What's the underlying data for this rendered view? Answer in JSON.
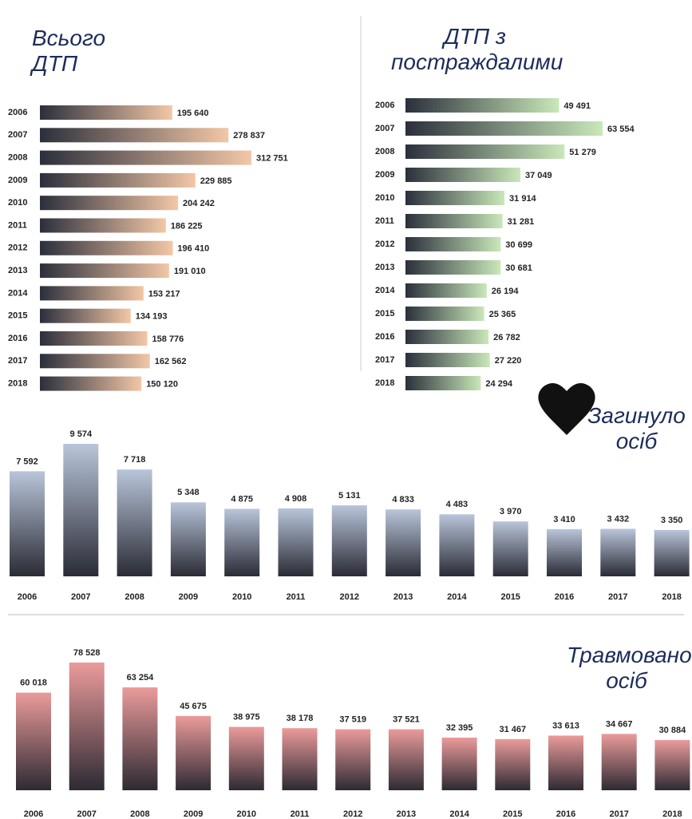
{
  "chart_data": [
    {
      "type": "hbar",
      "title": "Всього ДТП",
      "categories": [
        "2006",
        "2007",
        "2008",
        "2009",
        "2010",
        "2011",
        "2012",
        "2013",
        "2014",
        "2015",
        "2016",
        "2017",
        "2018"
      ],
      "values": [
        195640,
        278837,
        312751,
        229885,
        204242,
        186225,
        196410,
        191010,
        153217,
        134193,
        158776,
        162562,
        150120
      ],
      "value_labels": [
        "195 640",
        "278 837",
        "312 751",
        "229 885",
        "204 242",
        "186 225",
        "196 410",
        "191 010",
        "153 217",
        "134 193",
        "158 776",
        "162 562",
        "150 120"
      ],
      "gradient": [
        "#2b2f3c",
        "#f3c7a6"
      ]
    },
    {
      "type": "hbar",
      "title": "ДТП з постраждалими",
      "categories": [
        "2006",
        "2007",
        "2008",
        "2009",
        "2010",
        "2011",
        "2012",
        "2013",
        "2014",
        "2015",
        "2016",
        "2017",
        "2018"
      ],
      "values": [
        49491,
        63554,
        51279,
        37049,
        31914,
        31281,
        30699,
        30681,
        26194,
        25365,
        26782,
        27220,
        24294
      ],
      "value_labels": [
        "49 491",
        "63 554",
        "51 279",
        "37 049",
        "31 914",
        "31 281",
        "30 699",
        "30 681",
        "26 194",
        "25 365",
        "26 782",
        "27 220",
        "24 294"
      ],
      "gradient": [
        "#2b2f3c",
        "#c9e8b9"
      ]
    },
    {
      "type": "bar",
      "title": "Загинуло осіб",
      "categories": [
        "2006",
        "2007",
        "2008",
        "2009",
        "2010",
        "2011",
        "2012",
        "2013",
        "2014",
        "2015",
        "2016",
        "2017",
        "2018"
      ],
      "values": [
        7592,
        9574,
        7718,
        5348,
        4875,
        4908,
        5131,
        4833,
        4483,
        3970,
        3410,
        3432,
        3350
      ],
      "value_labels": [
        "7 592",
        "9 574",
        "7 718",
        "5 348",
        "4 875",
        "4 908",
        "5 131",
        "4 833",
        "4 483",
        "3 970",
        "3 410",
        "3 432",
        "3 350"
      ],
      "gradient": [
        "#b9c5da",
        "#2a2b35"
      ]
    },
    {
      "type": "bar",
      "title": "Травмовано осіб",
      "categories": [
        "2006",
        "2007",
        "2008",
        "2009",
        "2010",
        "2011",
        "2012",
        "2013",
        "2014",
        "2015",
        "2016",
        "2017",
        "2018"
      ],
      "values": [
        60018,
        78528,
        63254,
        45675,
        38975,
        38178,
        37519,
        37521,
        32395,
        31467,
        33613,
        34667,
        30884
      ],
      "value_labels": [
        "60 018",
        "78 528",
        "63 254",
        "45 675",
        "38 975",
        "38 178",
        "37 519",
        "37 521",
        "32 395",
        "31 467",
        "33 613",
        "34 667",
        "30 884"
      ],
      "gradient": [
        "#eb9b9b",
        "#2d2a33"
      ]
    }
  ]
}
